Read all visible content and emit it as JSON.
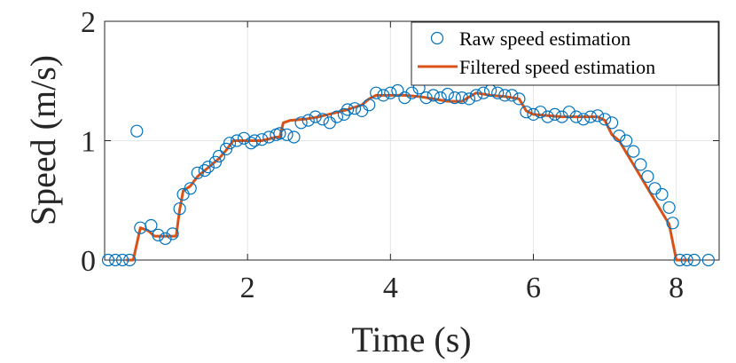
{
  "chart_data": {
    "type": "line",
    "xlabel": "Time (s)",
    "ylabel": "Speed (m/s)",
    "xlim": [
      0,
      8.6
    ],
    "ylim": [
      0,
      2
    ],
    "x_ticks": [
      2,
      4,
      6,
      8
    ],
    "y_ticks": [
      0,
      1,
      2
    ],
    "x_tick_labels": [
      "2",
      "4",
      "6",
      "8"
    ],
    "y_tick_labels": [
      "0",
      "1",
      "2"
    ],
    "grid": true,
    "legend_position": "top-right",
    "series": [
      {
        "name": "Raw speed estimation",
        "style": "markers",
        "color": "#0072BD",
        "x": [
          0.05,
          0.15,
          0.25,
          0.35,
          0.45,
          0.5,
          0.65,
          0.75,
          0.85,
          0.95,
          1.05,
          1.1,
          1.2,
          1.3,
          1.4,
          1.45,
          1.55,
          1.6,
          1.7,
          1.75,
          1.85,
          1.95,
          2.05,
          2.1,
          2.2,
          2.3,
          2.4,
          2.45,
          2.55,
          2.65,
          2.75,
          2.85,
          2.95,
          3.05,
          3.15,
          3.25,
          3.35,
          3.4,
          3.5,
          3.6,
          3.7,
          3.8,
          3.9,
          4.0,
          4.1,
          4.2,
          4.3,
          4.4,
          4.5,
          4.6,
          4.7,
          4.8,
          4.9,
          5.0,
          5.1,
          5.2,
          5.3,
          5.4,
          5.5,
          5.6,
          5.7,
          5.8,
          5.9,
          6.0,
          6.1,
          6.2,
          6.3,
          6.4,
          6.5,
          6.6,
          6.7,
          6.8,
          6.9,
          7.0,
          7.1,
          7.2,
          7.3,
          7.4,
          7.5,
          7.6,
          7.7,
          7.8,
          7.9,
          7.95,
          8.05,
          8.15,
          8.25,
          8.45
        ],
        "y": [
          0.0,
          0.0,
          0.0,
          0.0,
          1.08,
          0.27,
          0.29,
          0.21,
          0.18,
          0.22,
          0.43,
          0.55,
          0.6,
          0.73,
          0.75,
          0.78,
          0.82,
          0.87,
          0.93,
          0.98,
          1.0,
          1.02,
          0.98,
          1.0,
          1.01,
          1.03,
          1.05,
          1.06,
          1.05,
          1.03,
          1.15,
          1.17,
          1.2,
          1.18,
          1.15,
          1.2,
          1.22,
          1.26,
          1.27,
          1.25,
          1.3,
          1.4,
          1.38,
          1.4,
          1.42,
          1.36,
          1.4,
          1.44,
          1.36,
          1.38,
          1.36,
          1.39,
          1.36,
          1.36,
          1.35,
          1.38,
          1.4,
          1.42,
          1.4,
          1.38,
          1.38,
          1.35,
          1.24,
          1.22,
          1.24,
          1.2,
          1.22,
          1.2,
          1.24,
          1.2,
          1.18,
          1.2,
          1.21,
          1.18,
          1.15,
          1.04,
          1.0,
          0.91,
          0.8,
          0.7,
          0.6,
          0.55,
          0.44,
          0.31,
          0.0,
          0.0,
          0.0,
          0.0
        ]
      },
      {
        "name": "Filtered speed estimation",
        "style": "line",
        "color": "#D95319",
        "x": [
          0.3,
          0.4,
          0.5,
          0.6,
          0.7,
          0.8,
          0.9,
          1.0,
          1.05,
          1.1,
          1.2,
          1.3,
          1.4,
          1.5,
          1.6,
          1.7,
          1.8,
          1.9,
          2.0,
          2.2,
          2.4,
          2.45,
          2.5,
          2.6,
          2.8,
          3.0,
          3.2,
          3.4,
          3.6,
          3.7,
          3.8,
          4.0,
          4.2,
          4.4,
          4.6,
          4.8,
          5.0,
          5.2,
          5.4,
          5.6,
          5.8,
          5.9,
          6.0,
          6.2,
          6.4,
          6.6,
          6.8,
          6.9,
          7.0,
          7.1,
          7.2,
          7.3,
          7.4,
          7.5,
          7.6,
          7.7,
          7.8,
          7.9,
          8.0,
          8.05,
          8.2
        ],
        "y": [
          0.0,
          0.0,
          0.27,
          0.25,
          0.2,
          0.2,
          0.2,
          0.2,
          0.42,
          0.58,
          0.62,
          0.7,
          0.75,
          0.8,
          0.85,
          0.92,
          1.0,
          1.0,
          1.0,
          1.0,
          1.03,
          1.03,
          1.15,
          1.17,
          1.18,
          1.2,
          1.23,
          1.26,
          1.3,
          1.35,
          1.38,
          1.38,
          1.38,
          1.37,
          1.35,
          1.33,
          1.33,
          1.4,
          1.38,
          1.37,
          1.35,
          1.25,
          1.22,
          1.21,
          1.2,
          1.2,
          1.2,
          1.2,
          1.17,
          1.05,
          1.0,
          0.9,
          0.8,
          0.7,
          0.6,
          0.5,
          0.4,
          0.3,
          0.0,
          0.0,
          0.0
        ]
      }
    ]
  }
}
